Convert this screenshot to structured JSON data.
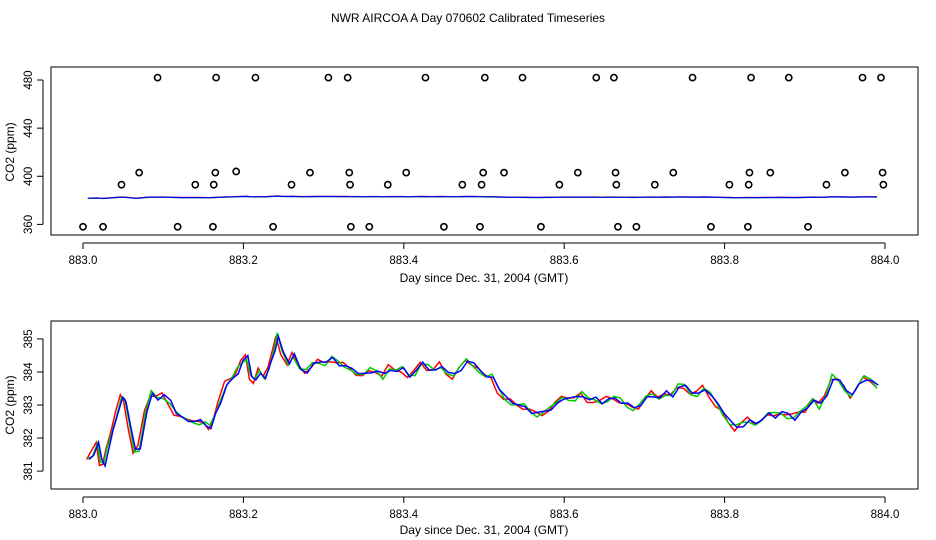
{
  "figure_title": "NWR AIRCOA A  Day 070602  Calibrated Timeseries",
  "chart_data": [
    {
      "type": "scatter",
      "title": "NWR AIRCOA A  Day 070602  Calibrated Timeseries",
      "xlabel": "Day since Dec. 31, 2004 (GMT)",
      "ylabel": "CO2 (ppm)",
      "xlim": [
        883.0,
        884.0
      ],
      "ylim": [
        357,
        485
      ],
      "xticks": [
        883.0,
        883.2,
        883.4,
        883.6,
        883.8,
        884.0
      ],
      "xtick_labels": [
        "883.0",
        "883.2",
        "883.4",
        "883.6",
        "883.8",
        "884.0"
      ],
      "yticks": [
        360,
        400,
        440,
        480
      ],
      "ytick_labels": [
        "360",
        "400",
        "440",
        "480"
      ],
      "grid": false,
      "points": [
        [
          883.0,
          358
        ],
        [
          883.025,
          358
        ],
        [
          883.048,
          393
        ],
        [
          883.07,
          403
        ],
        [
          883.093,
          482
        ],
        [
          883.118,
          358
        ],
        [
          883.14,
          393
        ],
        [
          883.162,
          358
        ],
        [
          883.163,
          393
        ],
        [
          883.165,
          403
        ],
        [
          883.166,
          482
        ],
        [
          883.191,
          404
        ],
        [
          883.215,
          482
        ],
        [
          883.237,
          358
        ],
        [
          883.26,
          393
        ],
        [
          883.283,
          403
        ],
        [
          883.306,
          482
        ],
        [
          883.33,
          482
        ],
        [
          883.332,
          403
        ],
        [
          883.333,
          393
        ],
        [
          883.334,
          358
        ],
        [
          883.357,
          358
        ],
        [
          883.38,
          393
        ],
        [
          883.403,
          403
        ],
        [
          883.427,
          482
        ],
        [
          883.45,
          358
        ],
        [
          883.473,
          393
        ],
        [
          883.495,
          358
        ],
        [
          883.497,
          393
        ],
        [
          883.499,
          403
        ],
        [
          883.501,
          482
        ],
        [
          883.525,
          403
        ],
        [
          883.548,
          482
        ],
        [
          883.571,
          358
        ],
        [
          883.594,
          393
        ],
        [
          883.617,
          403
        ],
        [
          883.64,
          482
        ],
        [
          883.662,
          482
        ],
        [
          883.664,
          403
        ],
        [
          883.665,
          393
        ],
        [
          883.667,
          358
        ],
        [
          883.69,
          358
        ],
        [
          883.713,
          393
        ],
        [
          883.736,
          403
        ],
        [
          883.76,
          482
        ],
        [
          883.783,
          358
        ],
        [
          883.806,
          393
        ],
        [
          883.829,
          358
        ],
        [
          883.83,
          393
        ],
        [
          883.831,
          403
        ],
        [
          883.833,
          482
        ],
        [
          883.857,
          403
        ],
        [
          883.88,
          482
        ],
        [
          883.904,
          358
        ],
        [
          883.927,
          393
        ],
        [
          883.95,
          403
        ],
        [
          883.972,
          482
        ],
        [
          883.995,
          482
        ],
        [
          883.997,
          403
        ],
        [
          883.998,
          393
        ]
      ],
      "series": [
        {
          "name": "red",
          "color": "#ff0000"
        },
        {
          "name": "green",
          "color": "#00cc00"
        },
        {
          "name": "blue",
          "color": "#0000ff"
        }
      ]
    },
    {
      "type": "line",
      "title": "",
      "xlabel": "Day since Dec. 31, 2004 (GMT)",
      "ylabel": "CO2 (ppm)",
      "xlim": [
        883.0,
        884.0
      ],
      "ylim": [
        380.7,
        385.3
      ],
      "xticks": [
        883.0,
        883.2,
        883.4,
        883.6,
        883.8,
        884.0
      ],
      "xtick_labels": [
        "883.0",
        "883.2",
        "883.4",
        "883.6",
        "883.8",
        "884.0"
      ],
      "yticks": [
        381,
        382,
        383,
        384,
        385
      ],
      "ytick_labels": [
        "381",
        "382",
        "383",
        "384",
        "385"
      ],
      "grid": false,
      "series": [
        {
          "name": "red",
          "color": "#ff0000"
        },
        {
          "name": "green",
          "color": "#00cc00"
        },
        {
          "name": "blue",
          "color": "#0000ff"
        }
      ],
      "base_curve": [
        [
          883.006,
          381.3
        ],
        [
          883.012,
          381.5
        ],
        [
          883.018,
          381.9
        ],
        [
          883.022,
          381.3
        ],
        [
          883.026,
          381.2
        ],
        [
          883.03,
          381.6
        ],
        [
          883.036,
          382.2
        ],
        [
          883.042,
          382.8
        ],
        [
          883.048,
          383.2
        ],
        [
          883.052,
          383.1
        ],
        [
          883.058,
          382.4
        ],
        [
          883.064,
          381.6
        ],
        [
          883.07,
          381.7
        ],
        [
          883.078,
          382.8
        ],
        [
          883.085,
          383.3
        ],
        [
          883.092,
          383.2
        ],
        [
          883.1,
          383.3
        ],
        [
          883.108,
          383.1
        ],
        [
          883.115,
          382.8
        ],
        [
          883.122,
          382.6
        ],
        [
          883.13,
          382.5
        ],
        [
          883.138,
          382.55
        ],
        [
          883.145,
          382.5
        ],
        [
          883.152,
          382.4
        ],
        [
          883.158,
          382.3
        ],
        [
          883.164,
          382.7
        ],
        [
          883.17,
          383.1
        ],
        [
          883.178,
          383.6
        ],
        [
          883.186,
          383.8
        ],
        [
          883.192,
          384.0
        ],
        [
          883.198,
          384.3
        ],
        [
          883.204,
          384.5
        ],
        [
          883.209,
          383.9
        ],
        [
          883.214,
          383.7
        ],
        [
          883.22,
          384.0
        ],
        [
          883.226,
          383.8
        ],
        [
          883.232,
          384.2
        ],
        [
          883.238,
          384.7
        ],
        [
          883.242,
          385.05
        ],
        [
          883.248,
          384.6
        ],
        [
          883.256,
          384.3
        ],
        [
          883.262,
          384.5
        ],
        [
          883.27,
          384.1
        ],
        [
          883.278,
          384.0
        ],
        [
          883.286,
          384.2
        ],
        [
          883.294,
          384.35
        ],
        [
          883.302,
          384.3
        ],
        [
          883.31,
          384.4
        ],
        [
          883.318,
          384.25
        ],
        [
          883.326,
          384.15
        ],
        [
          883.334,
          384.1
        ],
        [
          883.342,
          384.0
        ],
        [
          883.35,
          383.9
        ],
        [
          883.358,
          384.0
        ],
        [
          883.366,
          384.05
        ],
        [
          883.374,
          383.9
        ],
        [
          883.382,
          384.1
        ],
        [
          883.39,
          384.0
        ],
        [
          883.398,
          384.1
        ],
        [
          883.406,
          383.9
        ],
        [
          883.414,
          384.0
        ],
        [
          883.422,
          384.3
        ],
        [
          883.43,
          384.1
        ],
        [
          883.438,
          384.0
        ],
        [
          883.446,
          384.2
        ],
        [
          883.454,
          384.0
        ],
        [
          883.462,
          383.9
        ],
        [
          883.47,
          384.1
        ],
        [
          883.478,
          384.3
        ],
        [
          883.486,
          384.25
        ],
        [
          883.494,
          384.1
        ],
        [
          883.502,
          383.8
        ],
        [
          883.51,
          383.85
        ],
        [
          883.518,
          383.5
        ],
        [
          883.526,
          383.2
        ],
        [
          883.534,
          383.1
        ],
        [
          883.542,
          383.0
        ],
        [
          883.55,
          382.9
        ],
        [
          883.558,
          382.8
        ],
        [
          883.566,
          382.75
        ],
        [
          883.574,
          382.8
        ],
        [
          883.582,
          382.9
        ],
        [
          883.59,
          383.0
        ],
        [
          883.598,
          383.2
        ],
        [
          883.606,
          383.25
        ],
        [
          883.614,
          383.2
        ],
        [
          883.622,
          383.3
        ],
        [
          883.63,
          383.15
        ],
        [
          883.638,
          383.2
        ],
        [
          883.646,
          383.1
        ],
        [
          883.654,
          383.15
        ],
        [
          883.662,
          383.2
        ],
        [
          883.67,
          383.1
        ],
        [
          883.678,
          383.0
        ],
        [
          883.686,
          382.95
        ],
        [
          883.694,
          383.0
        ],
        [
          883.702,
          383.2
        ],
        [
          883.71,
          383.3
        ],
        [
          883.718,
          383.2
        ],
        [
          883.726,
          383.4
        ],
        [
          883.734,
          383.3
        ],
        [
          883.742,
          383.5
        ],
        [
          883.75,
          383.6
        ],
        [
          883.758,
          383.4
        ],
        [
          883.766,
          383.3
        ],
        [
          883.774,
          383.5
        ],
        [
          883.782,
          383.3
        ],
        [
          883.79,
          383.0
        ],
        [
          883.798,
          382.8
        ],
        [
          883.806,
          382.5
        ],
        [
          883.814,
          382.3
        ],
        [
          883.822,
          382.4
        ],
        [
          883.83,
          382.5
        ],
        [
          883.838,
          382.45
        ],
        [
          883.846,
          382.6
        ],
        [
          883.854,
          382.7
        ],
        [
          883.862,
          382.65
        ],
        [
          883.87,
          382.8
        ],
        [
          883.878,
          382.7
        ],
        [
          883.886,
          382.6
        ],
        [
          883.894,
          382.75
        ],
        [
          883.902,
          382.9
        ],
        [
          883.91,
          383.2
        ],
        [
          883.918,
          383.0
        ],
        [
          883.926,
          383.3
        ],
        [
          883.934,
          383.8
        ],
        [
          883.942,
          383.7
        ],
        [
          883.95,
          383.5
        ],
        [
          883.958,
          383.3
        ],
        [
          883.966,
          383.6
        ],
        [
          883.974,
          383.8
        ],
        [
          883.982,
          383.7
        ],
        [
          883.99,
          383.6
        ]
      ]
    }
  ]
}
